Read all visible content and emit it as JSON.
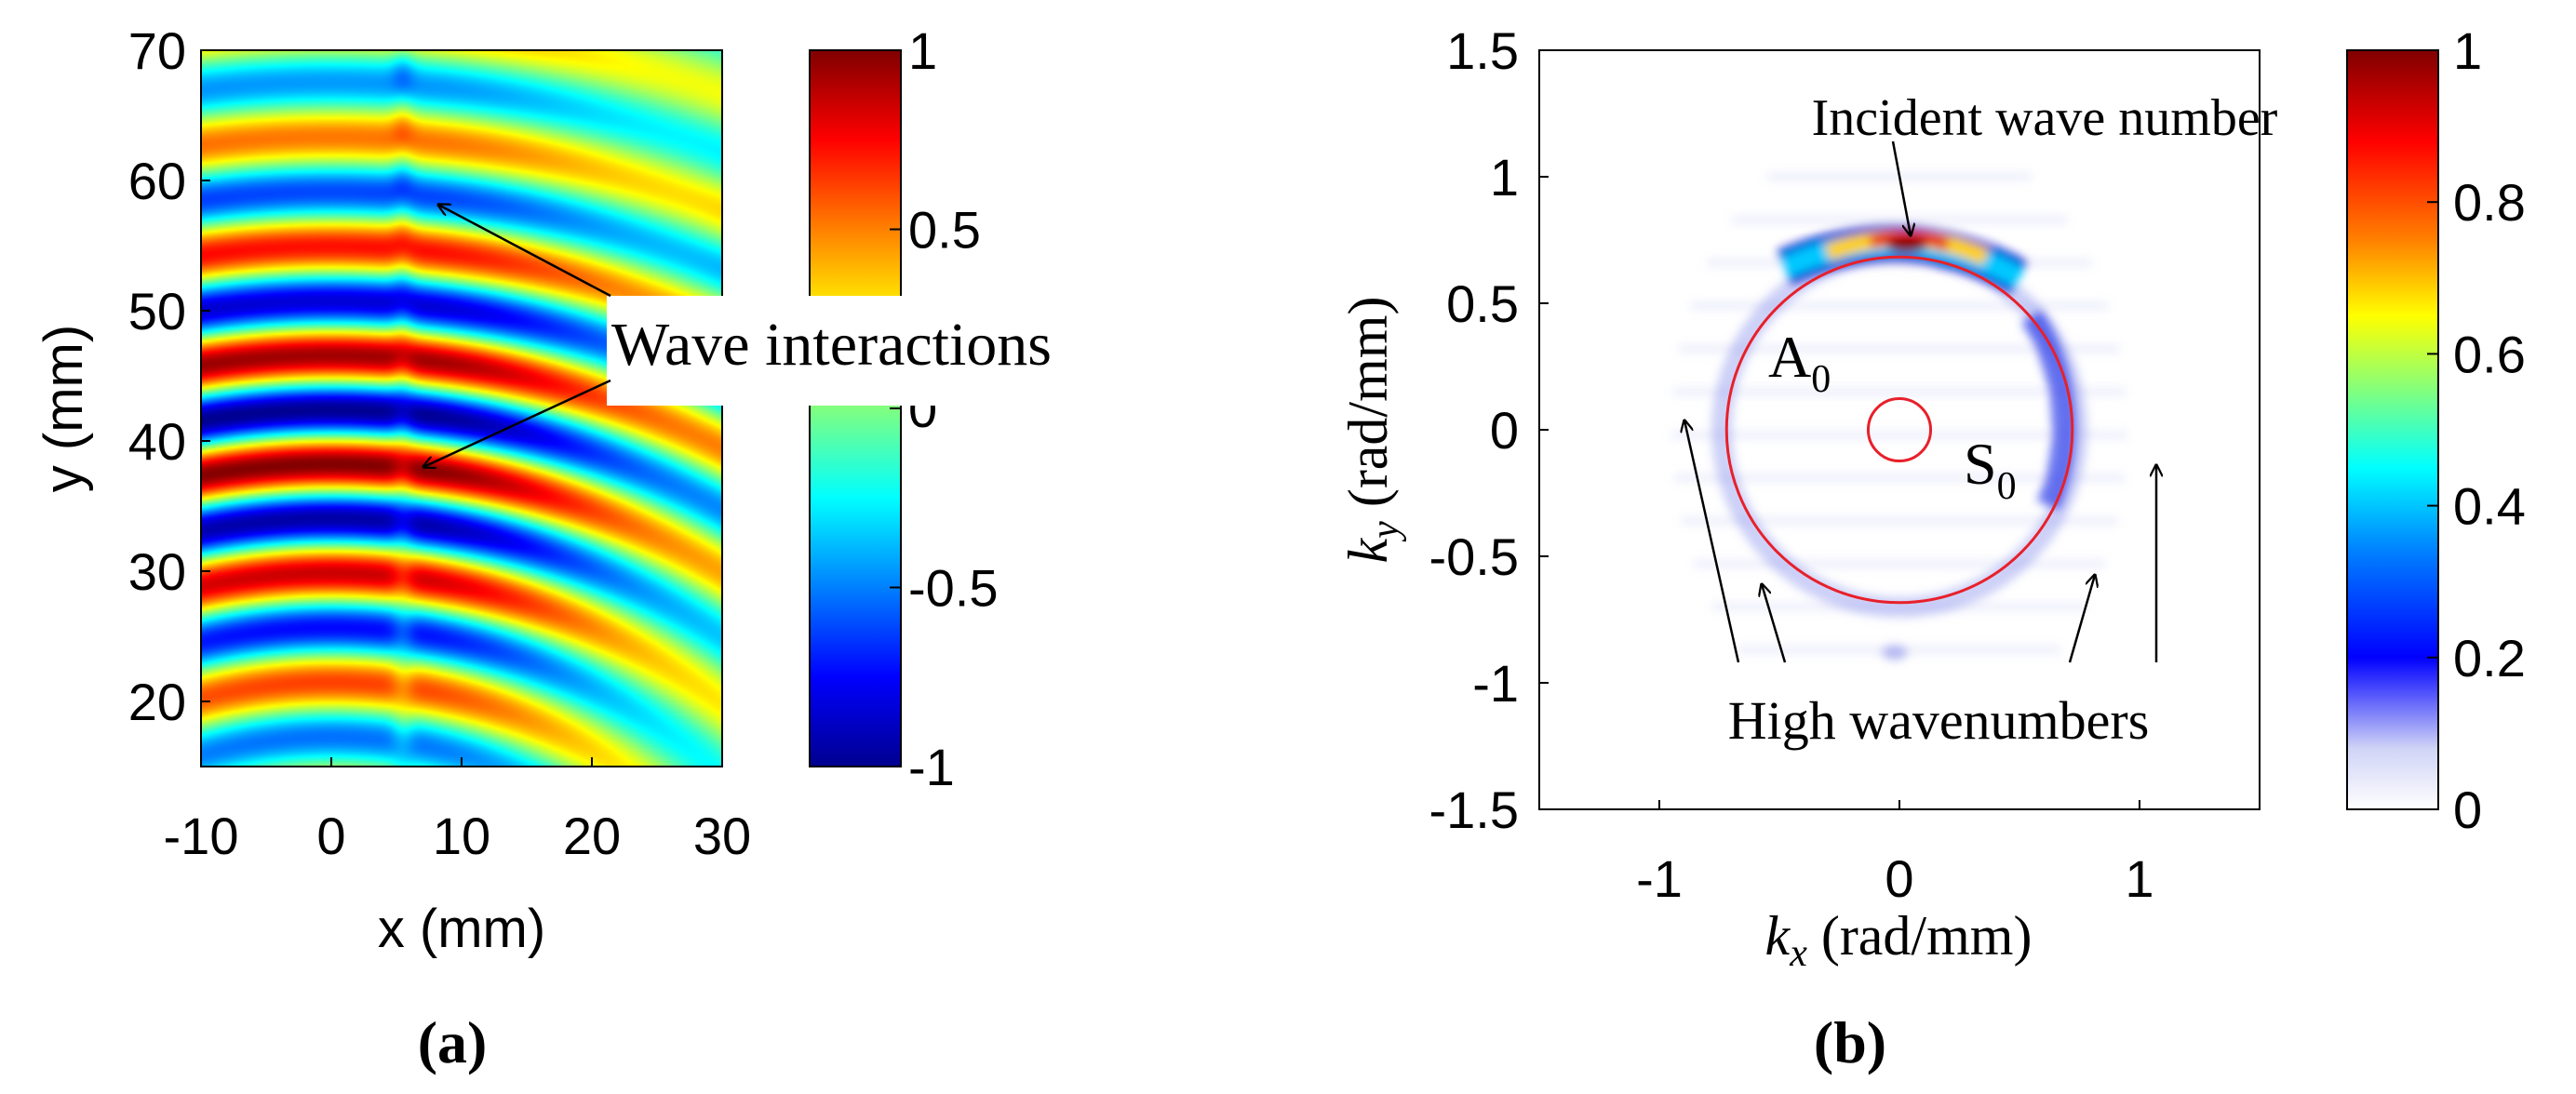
{
  "colors": {
    "axis": "#000000",
    "circle": "#e8202a",
    "background": "#ffffff",
    "jet": [
      "#00008f",
      "#0000ff",
      "#0080ff",
      "#00ffff",
      "#80ff80",
      "#ffff00",
      "#ff8000",
      "#ff0000",
      "#800000"
    ]
  },
  "chart_data": [
    {
      "id": "a",
      "type": "heatmap",
      "panel_label": "a",
      "xlabel": "x (mm)",
      "ylabel": "y (mm)",
      "xlim": [
        -10,
        30
      ],
      "ylim": [
        15,
        70
      ],
      "xticks": [
        "-10",
        "0",
        "10",
        "20",
        "30"
      ],
      "xtick_values": [
        -10,
        0,
        10,
        20,
        30
      ],
      "yticks": [
        "20",
        "30",
        "40",
        "50",
        "60",
        "70"
      ],
      "ytick_values": [
        20,
        30,
        40,
        50,
        60,
        70
      ],
      "colorbar": {
        "range": [
          -1,
          1
        ],
        "ticks": [
          "1",
          "0.5",
          "0",
          "-0.5",
          "-1"
        ],
        "tick_values": [
          1,
          0.5,
          0,
          -0.5,
          -1
        ]
      },
      "field": {
        "description_wave_center": [
          0,
          -20
        ],
        "wavelength_mm": 8.4,
        "phase": 0.45,
        "defect_x": 5.5,
        "interaction_points": [
          [
            6,
            58
          ],
          [
            6,
            38
          ]
        ]
      },
      "annotations": [
        {
          "text": "Wave interactions",
          "targets": [
            [
              6,
              58
            ],
            [
              6,
              38
            ]
          ]
        }
      ]
    },
    {
      "id": "b",
      "type": "heatmap",
      "panel_label": "b",
      "xlabel_main": "k",
      "xlabel_sub": "x",
      "xlabel_unit": " (rad/mm)",
      "ylabel_main": "k",
      "ylabel_sub": "y",
      "ylabel_unit": " (rad/mm)",
      "xlim": [
        -1.5,
        1.5
      ],
      "ylim": [
        -1.5,
        1.5
      ],
      "xticks": [
        "-1",
        "0",
        "1"
      ],
      "xtick_values": [
        -1,
        0,
        1
      ],
      "yticks": [
        "1.5",
        "1",
        "0.5",
        "0",
        "-0.5",
        "-1",
        "-1.5"
      ],
      "ytick_values": [
        1.5,
        1,
        0.5,
        0,
        -0.5,
        -1,
        -1.5
      ],
      "colorbar": {
        "range": [
          0,
          1
        ],
        "ticks": [
          "1",
          "0.8",
          "0.6",
          "0.4",
          "0.2",
          "0"
        ],
        "tick_values": [
          1,
          0.8,
          0.6,
          0.4,
          0.2,
          0
        ]
      },
      "circles": [
        {
          "name": "A0",
          "radius": 0.72
        },
        {
          "name": "S0",
          "radius": 0.13
        }
      ],
      "circle_labels": [
        {
          "main": "A",
          "sub": "0",
          "at": [
            -0.6,
            0.23
          ]
        },
        {
          "main": "S",
          "sub": "0",
          "at": [
            0.21,
            -0.28
          ]
        }
      ],
      "peak": {
        "kx": 0.03,
        "ky": 0.73,
        "value": 1.0
      },
      "annotations": [
        {
          "text": "Incident wave number",
          "target": [
            -0.05,
            0.77
          ]
        },
        {
          "text": "High wavenumbers",
          "targets": [
            [
              -0.95,
              0.03
            ],
            [
              -0.65,
              -0.6
            ],
            [
              0.75,
              -0.6
            ],
            [
              0.95,
              -0.15
            ]
          ]
        }
      ]
    }
  ]
}
